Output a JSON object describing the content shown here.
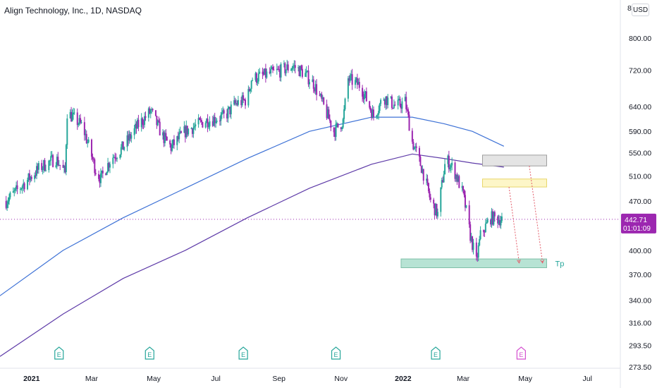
{
  "header": {
    "title": "Align Technology, Inc., 1D, NASDAQ",
    "currency": "USD",
    "top_axis_label": "8"
  },
  "price_label": {
    "value": "442.71",
    "countdown": "01:01:09",
    "color": "#9c27b0"
  },
  "zone_label": "Tp",
  "earnings_marker": "E",
  "colors": {
    "up": "#26a69a",
    "down": "#9c27b0",
    "ma_short": "#3e72d6",
    "ma_long": "#5e3ba8",
    "current_line": "#9c27b0",
    "earnings_past": "#26a69a",
    "earnings_future": "#d44fcf",
    "tp_zone": "#b7e3d4",
    "yellow_zone": "#fdf6c8",
    "gray_zone": "#e4e4e4",
    "arrow": "#e35d6a"
  },
  "chart_data": {
    "type": "candlestick",
    "title": "Align Technology, Inc., 1D, NASDAQ",
    "y_scale": "log",
    "ylim": [
      265,
      880
    ],
    "y_ticks": [
      "800.00",
      "720.00",
      "640.00",
      "590.00",
      "550.00",
      "510.00",
      "470.00",
      "400.00",
      "370.00",
      "340.00",
      "316.00",
      "293.50",
      "273.50"
    ],
    "x_ticks": [
      {
        "label": "2021",
        "date": "2021-01-01",
        "year": true
      },
      {
        "label": "Mar",
        "date": "2021-03-01"
      },
      {
        "label": "May",
        "date": "2021-05-01"
      },
      {
        "label": "Jul",
        "date": "2021-07-01"
      },
      {
        "label": "Sep",
        "date": "2021-09-01"
      },
      {
        "label": "Nov",
        "date": "2021-11-01"
      },
      {
        "label": "2022",
        "date": "2022-01-01",
        "year": true
      },
      {
        "label": "Mar",
        "date": "2022-03-01"
      },
      {
        "label": "May",
        "date": "2022-05-01"
      },
      {
        "label": "Jul",
        "date": "2022-07-01"
      }
    ],
    "x_range": [
      "2020-12-01",
      "2022-08-01"
    ],
    "price_path": [
      [
        "2020-12-07",
        470
      ],
      [
        "2020-12-20",
        490
      ],
      [
        "2021-01-10",
        525
      ],
      [
        "2021-01-25",
        540
      ],
      [
        "2021-02-03",
        515
      ],
      [
        "2021-02-05",
        628
      ],
      [
        "2021-02-20",
        600
      ],
      [
        "2021-03-05",
        520
      ],
      [
        "2021-03-10",
        505
      ],
      [
        "2021-03-20",
        540
      ],
      [
        "2021-04-01",
        560
      ],
      [
        "2021-04-15",
        600
      ],
      [
        "2021-04-28",
        630
      ],
      [
        "2021-05-10",
        580
      ],
      [
        "2021-05-18",
        560
      ],
      [
        "2021-06-01",
        590
      ],
      [
        "2021-06-20",
        610
      ],
      [
        "2021-07-10",
        620
      ],
      [
        "2021-07-20",
        645
      ],
      [
        "2021-08-01",
        655
      ],
      [
        "2021-08-05",
        700
      ],
      [
        "2021-08-20",
        710
      ],
      [
        "2021-09-01",
        718
      ],
      [
        "2021-09-15",
        730
      ],
      [
        "2021-09-25",
        715
      ],
      [
        "2021-10-05",
        690
      ],
      [
        "2021-10-15",
        640
      ],
      [
        "2021-10-25",
        590
      ],
      [
        "2021-11-03",
        610
      ],
      [
        "2021-11-08",
        700
      ],
      [
        "2021-11-20",
        685
      ],
      [
        "2021-12-03",
        620
      ],
      [
        "2021-12-13",
        660
      ],
      [
        "2021-12-25",
        640
      ],
      [
        "2022-01-03",
        650
      ],
      [
        "2022-01-10",
        570
      ],
      [
        "2022-01-20",
        520
      ],
      [
        "2022-01-28",
        470
      ],
      [
        "2022-02-04",
        450
      ],
      [
        "2022-02-12",
        540
      ],
      [
        "2022-02-20",
        520
      ],
      [
        "2022-03-01",
        480
      ],
      [
        "2022-03-08",
        420
      ],
      [
        "2022-03-14",
        385
      ],
      [
        "2022-03-18",
        420
      ],
      [
        "2022-03-28",
        445
      ],
      [
        "2022-04-08",
        442.71
      ]
    ],
    "series": [
      {
        "name": "Moving average (short)",
        "points": [
          [
            "2020-12-01",
            345
          ],
          [
            "2021-02-01",
            400
          ],
          [
            "2021-04-01",
            445
          ],
          [
            "2021-06-01",
            490
          ],
          [
            "2021-08-01",
            540
          ],
          [
            "2021-10-01",
            590
          ],
          [
            "2021-12-01",
            618
          ],
          [
            "2022-01-10",
            618
          ],
          [
            "2022-02-10",
            605
          ],
          [
            "2022-03-10",
            590
          ],
          [
            "2022-04-10",
            562
          ]
        ]
      },
      {
        "name": "Moving average (long)",
        "points": [
          [
            "2020-12-01",
            283
          ],
          [
            "2021-02-01",
            325
          ],
          [
            "2021-04-01",
            365
          ],
          [
            "2021-06-01",
            400
          ],
          [
            "2021-08-01",
            445
          ],
          [
            "2021-10-01",
            490
          ],
          [
            "2021-12-01",
            530
          ],
          [
            "2022-01-10",
            548
          ],
          [
            "2022-02-10",
            540
          ],
          [
            "2022-03-10",
            532
          ],
          [
            "2022-04-10",
            525
          ]
        ]
      }
    ],
    "current_price": 442.71,
    "zones": [
      {
        "name": "gray",
        "from": "2022-03-20",
        "to": "2022-05-22",
        "low": 527,
        "high": 546
      },
      {
        "name": "yellow",
        "from": "2022-03-20",
        "to": "2022-05-22",
        "low": 492,
        "high": 505
      },
      {
        "name": "tp",
        "label": "Tp",
        "from": "2021-12-30",
        "to": "2022-05-22",
        "low": 378,
        "high": 389
      }
    ],
    "arrows": [
      {
        "from": [
          "2022-04-15",
          492
        ],
        "to": [
          "2022-04-25",
          384
        ]
      },
      {
        "from": [
          "2022-05-05",
          527
        ],
        "to": [
          "2022-05-18",
          384
        ]
      }
    ],
    "earnings": [
      {
        "date": "2021-01-28",
        "future": false
      },
      {
        "date": "2021-04-27",
        "future": false
      },
      {
        "date": "2021-07-28",
        "future": false
      },
      {
        "date": "2021-10-27",
        "future": false
      },
      {
        "date": "2022-02-02",
        "future": false
      },
      {
        "date": "2022-04-27",
        "future": true
      }
    ],
    "grid": false,
    "legend": "none"
  }
}
